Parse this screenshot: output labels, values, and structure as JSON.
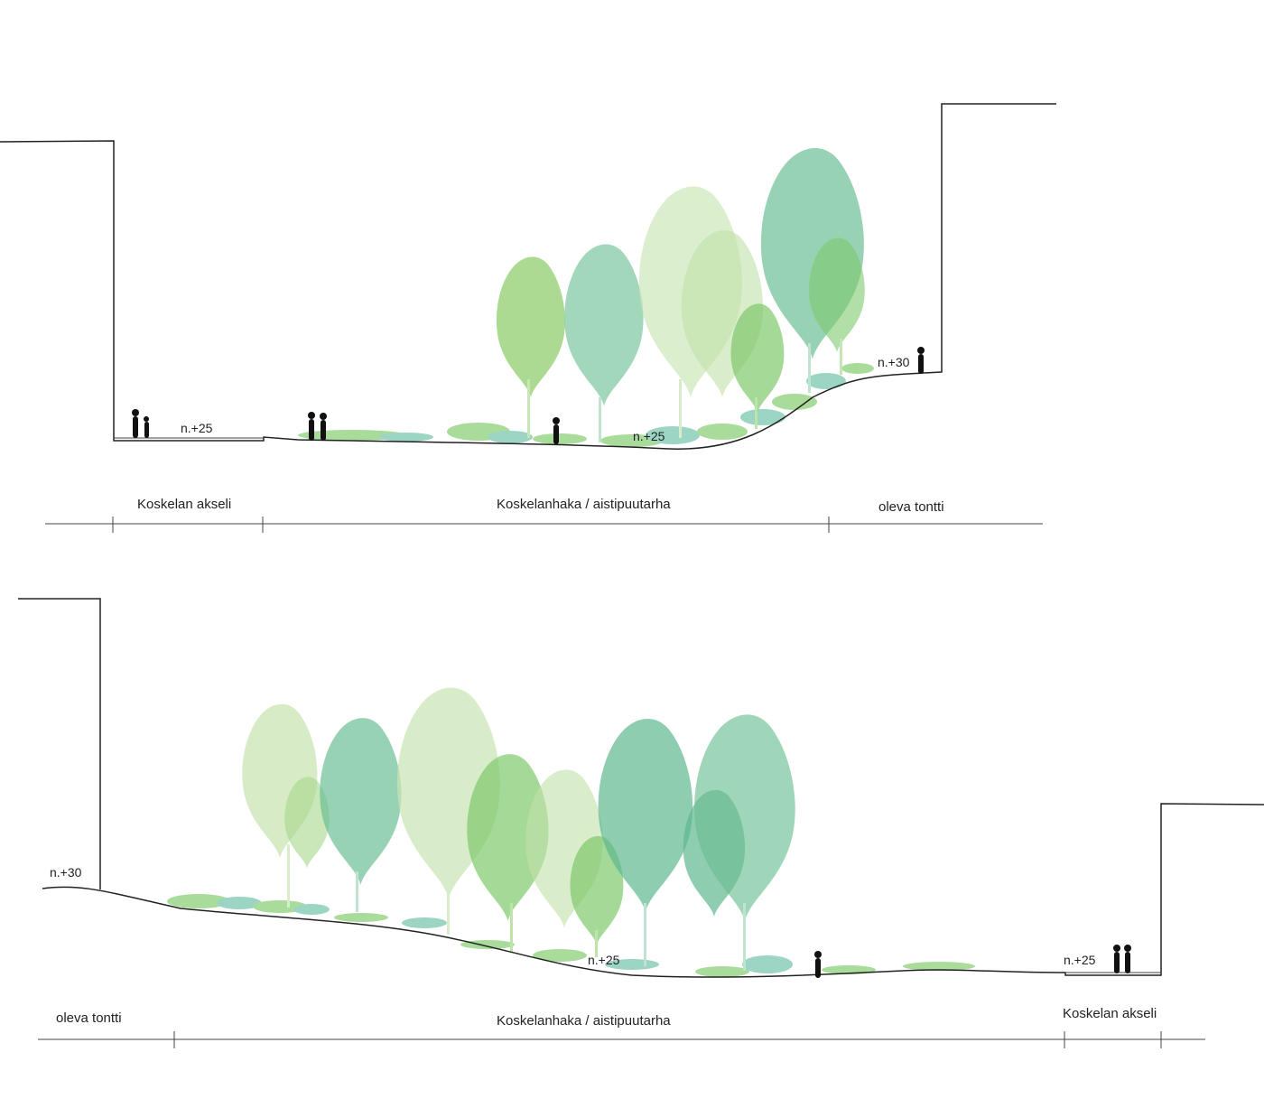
{
  "colors": {
    "tree_light": "#b9dda0",
    "tree_mid": "#7fc96d",
    "tree_teal": "#5fb88f",
    "ground_green": "#8dd07a",
    "ground_teal": "#7cc7b0",
    "line": "#222222",
    "figure": "#111111"
  },
  "sections": [
    {
      "elevations": [
        "n.+25",
        "n.+25",
        "n.+30"
      ],
      "zones": [
        "Koskelan akseli",
        "Koskelanhaka / aistipuutarha",
        "oleva tontti"
      ]
    },
    {
      "elevations": [
        "n.+30",
        "n.+25",
        "n.+25"
      ],
      "zones": [
        "oleva tontti",
        "Koskelanhaka / aistipuutarha",
        "Koskelan akseli"
      ]
    }
  ]
}
